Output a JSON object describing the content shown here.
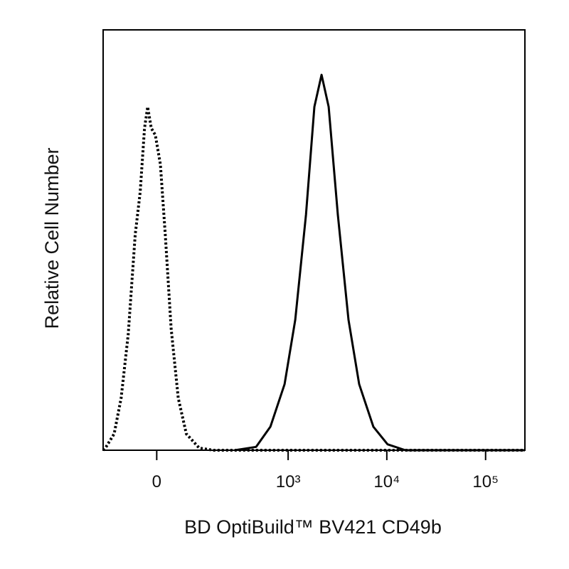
{
  "chart_data": {
    "type": "line",
    "xlabel": "BD OptiBuild™ BV421 CD49b",
    "ylabel": "Relative Cell Number",
    "xscale": "arcsinh",
    "xlim": [
      -150,
      250000
    ],
    "ylim": [
      0,
      100
    ],
    "xticks": [
      0,
      {
        "value": 1000,
        "label": "10³"
      },
      {
        "value": 10000,
        "label": "10⁴"
      },
      {
        "value": 100000,
        "label": "10⁵"
      }
    ],
    "series": [
      {
        "color": "#000000",
        "dash": "dotted",
        "x": [
          -150,
          -141,
          -109,
          -87,
          -67,
          -49,
          -37,
          -27,
          -20,
          -12,
          -3,
          8,
          19,
          32,
          49,
          70,
          109,
          164,
          250000
        ],
        "values": [
          0,
          0.5,
          3.9,
          12.4,
          27.6,
          51.3,
          61.4,
          76.6,
          81.7,
          76.6,
          75,
          68,
          51,
          29,
          12.4,
          3.9,
          0.5,
          0,
          0
        ]
      },
      {
        "color": "#000000",
        "dash": "solid",
        "x": [
          282,
          471,
          660,
          920,
          1181,
          1518,
          1846,
          2183,
          2577,
          3195,
          4095,
          5247,
          7309,
          10176,
          15404,
          250000
        ],
        "values": [
          0,
          0.8,
          5.6,
          15.7,
          31,
          56,
          81.7,
          89.3,
          81.7,
          56,
          31,
          15.7,
          5.6,
          1.4,
          0,
          0
        ]
      }
    ]
  }
}
